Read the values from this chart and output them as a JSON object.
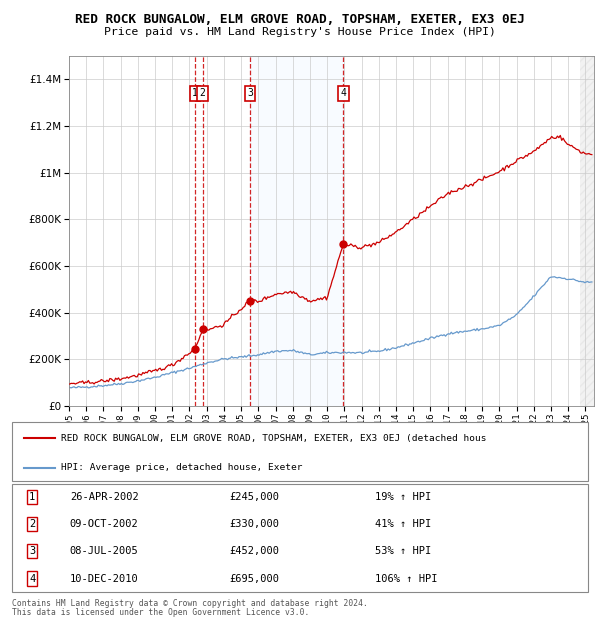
{
  "title": "RED ROCK BUNGALOW, ELM GROVE ROAD, TOPSHAM, EXETER, EX3 0EJ",
  "subtitle": "Price paid vs. HM Land Registry's House Price Index (HPI)",
  "legend_red": "RED ROCK BUNGALOW, ELM GROVE ROAD, TOPSHAM, EXETER, EX3 0EJ (detached hous",
  "legend_blue": "HPI: Average price, detached house, Exeter",
  "footer1": "Contains HM Land Registry data © Crown copyright and database right 2024.",
  "footer2": "This data is licensed under the Open Government Licence v3.0.",
  "sales": [
    {
      "num": 1,
      "date": "26-APR-2002",
      "price": 245000,
      "pct": "19%",
      "dir": "↑"
    },
    {
      "num": 2,
      "date": "09-OCT-2002",
      "price": 330000,
      "pct": "41%",
      "dir": "↑"
    },
    {
      "num": 3,
      "date": "08-JUL-2005",
      "price": 452000,
      "pct": "53%",
      "dir": "↑"
    },
    {
      "num": 4,
      "date": "10-DEC-2010",
      "price": 695000,
      "pct": "106%",
      "dir": "↑"
    }
  ],
  "sale_dates_decimal": [
    2002.32,
    2002.77,
    2005.52,
    2010.94
  ],
  "sale_prices": [
    245000,
    330000,
    452000,
    695000
  ],
  "ylim": [
    0,
    1500000
  ],
  "yticks": [
    0,
    200000,
    400000,
    600000,
    800000,
    1000000,
    1200000,
    1400000
  ],
  "xlim_start": 1995.0,
  "xlim_end": 2025.5,
  "red_color": "#cc0000",
  "blue_color": "#6699cc",
  "box_color": "#cc0000",
  "vline_color": "#cc0000",
  "shade_color": "#ddeeff",
  "title_fontsize": 9.5,
  "subtitle_fontsize": 8.5,
  "hpi_base_points": [
    [
      1995.0,
      78000
    ],
    [
      1996.0,
      82000
    ],
    [
      1997.0,
      88000
    ],
    [
      1998.0,
      96000
    ],
    [
      1999.0,
      108000
    ],
    [
      2000.0,
      123000
    ],
    [
      2001.0,
      143000
    ],
    [
      2002.0,
      162000
    ],
    [
      2003.0,
      185000
    ],
    [
      2004.0,
      202000
    ],
    [
      2005.0,
      210000
    ],
    [
      2006.0,
      220000
    ],
    [
      2007.0,
      235000
    ],
    [
      2008.0,
      238000
    ],
    [
      2009.0,
      220000
    ],
    [
      2010.0,
      228000
    ],
    [
      2011.0,
      230000
    ],
    [
      2012.0,
      228000
    ],
    [
      2013.0,
      235000
    ],
    [
      2014.0,
      250000
    ],
    [
      2015.0,
      270000
    ],
    [
      2016.0,
      290000
    ],
    [
      2017.0,
      310000
    ],
    [
      2018.0,
      320000
    ],
    [
      2019.0,
      330000
    ],
    [
      2020.0,
      345000
    ],
    [
      2021.0,
      390000
    ],
    [
      2022.0,
      470000
    ],
    [
      2023.0,
      555000
    ],
    [
      2024.0,
      545000
    ],
    [
      2025.0,
      530000
    ]
  ],
  "red_base_points": [
    [
      1995.0,
      96000
    ],
    [
      1996.0,
      100000
    ],
    [
      1997.0,
      107000
    ],
    [
      1998.0,
      117000
    ],
    [
      1999.0,
      132000
    ],
    [
      2000.0,
      151000
    ],
    [
      2001.0,
      176000
    ],
    [
      2002.32,
      245000
    ],
    [
      2002.77,
      330000
    ],
    [
      2003.0,
      325000
    ],
    [
      2004.0,
      350000
    ],
    [
      2005.52,
      452000
    ],
    [
      2006.0,
      448000
    ],
    [
      2007.0,
      480000
    ],
    [
      2008.0,
      490000
    ],
    [
      2009.0,
      450000
    ],
    [
      2010.0,
      465000
    ],
    [
      2010.94,
      695000
    ],
    [
      2011.0,
      690000
    ],
    [
      2012.0,
      680000
    ],
    [
      2013.0,
      700000
    ],
    [
      2014.0,
      745000
    ],
    [
      2015.0,
      800000
    ],
    [
      2016.0,
      855000
    ],
    [
      2017.0,
      910000
    ],
    [
      2018.0,
      940000
    ],
    [
      2019.0,
      970000
    ],
    [
      2020.0,
      1005000
    ],
    [
      2021.0,
      1050000
    ],
    [
      2022.0,
      1090000
    ],
    [
      2023.0,
      1150000
    ],
    [
      2023.5,
      1155000
    ],
    [
      2024.0,
      1120000
    ],
    [
      2025.0,
      1080000
    ]
  ]
}
